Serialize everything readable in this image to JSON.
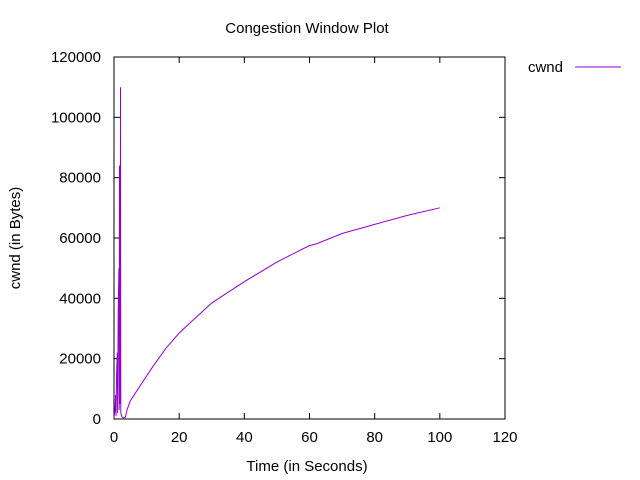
{
  "chart_data": {
    "type": "line",
    "title": "Congestion Window Plot",
    "xlabel": "Time (in Seconds)",
    "ylabel": "cwnd (in Bytes)",
    "xlim": [
      0,
      120
    ],
    "ylim": [
      0,
      120000
    ],
    "x_ticks": [
      0,
      20,
      40,
      60,
      80,
      100,
      120
    ],
    "y_ticks": [
      0,
      20000,
      40000,
      60000,
      80000,
      100000,
      120000
    ],
    "grid": false,
    "legend_position": "outside-top-right",
    "series": [
      {
        "name": "cwnd",
        "color": "#9400d3",
        "points": [
          [
            0,
            536
          ],
          [
            0.3,
            3000
          ],
          [
            0.5,
            8000
          ],
          [
            0.6,
            1000
          ],
          [
            0.8,
            15000
          ],
          [
            1.0,
            22000
          ],
          [
            1.1,
            2000
          ],
          [
            1.3,
            35000
          ],
          [
            1.5,
            50000
          ],
          [
            1.6,
            3000
          ],
          [
            1.7,
            84000
          ],
          [
            1.8,
            50000
          ],
          [
            1.9,
            5000
          ],
          [
            2.0,
            110000
          ],
          [
            2.1,
            2000
          ],
          [
            2.5,
            600
          ],
          [
            3.0,
            400
          ],
          [
            3.5,
            600
          ],
          [
            4.0,
            3000
          ],
          [
            5.0,
            6000
          ],
          [
            8.0,
            11000
          ],
          [
            12.0,
            17500
          ],
          [
            16.0,
            23500
          ],
          [
            20.0,
            28500
          ],
          [
            25.0,
            33500
          ],
          [
            30.0,
            38500
          ],
          [
            40.0,
            45500
          ],
          [
            50.0,
            52000
          ],
          [
            60.0,
            57500
          ],
          [
            62.0,
            58000
          ],
          [
            70.0,
            61500
          ],
          [
            80.0,
            64500
          ],
          [
            90.0,
            67500
          ],
          [
            100.0,
            70000
          ]
        ]
      }
    ]
  }
}
